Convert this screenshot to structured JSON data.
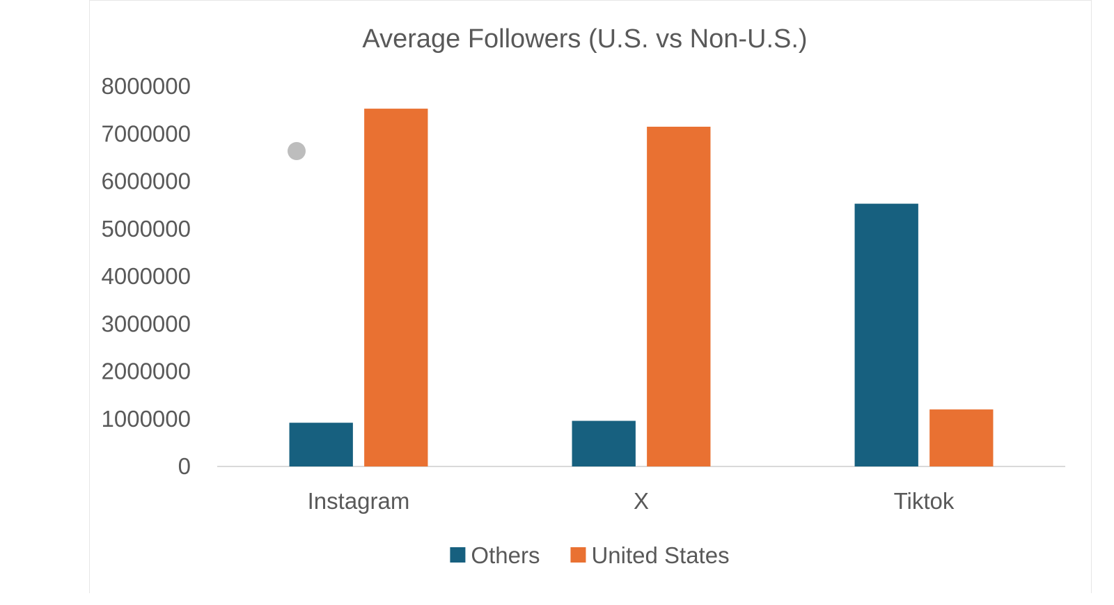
{
  "chart_data": {
    "type": "bar",
    "title": "Average Followers (U.S. vs Non-U.S.)",
    "xlabel": "",
    "ylabel": "",
    "categories": [
      "Instagram",
      "X",
      "Tiktok"
    ],
    "series": [
      {
        "name": "Others",
        "color": "#17607f",
        "values": [
          920000,
          960000,
          5530000
        ]
      },
      {
        "name": "United States",
        "color": "#e97132",
        "values": [
          7530000,
          7150000,
          1200000
        ]
      }
    ],
    "ylim": [
      0,
      8000000
    ],
    "yticks": [
      "0",
      "1000000",
      "2000000",
      "3000000",
      "4000000",
      "5000000",
      "6000000",
      "7000000",
      "8000000"
    ],
    "grid": false,
    "legend_position": "bottom"
  }
}
